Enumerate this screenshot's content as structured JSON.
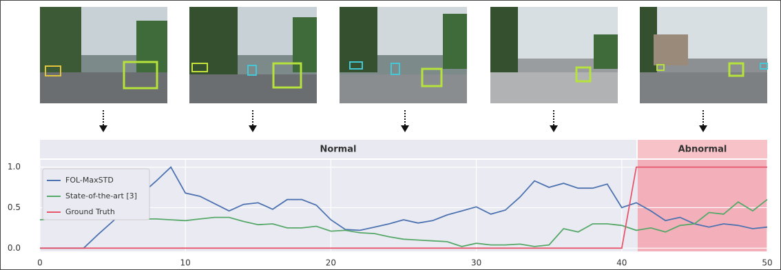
{
  "chart_data": {
    "type": "line",
    "x": [
      0,
      1,
      2,
      3,
      4,
      5,
      6,
      7,
      8,
      9,
      10,
      11,
      12,
      13,
      14,
      15,
      16,
      17,
      18,
      19,
      20,
      21,
      22,
      23,
      24,
      25,
      26,
      27,
      28,
      29,
      30,
      31,
      32,
      33,
      34,
      35,
      36,
      37,
      38,
      39,
      40,
      41,
      42,
      43,
      44,
      45,
      46,
      47,
      48,
      49,
      50
    ],
    "series": [
      {
        "name": "FOL-MaxSTD",
        "color": "#4c72b0",
        "values": [
          0,
          0,
          0,
          0,
          0.17,
          0.33,
          0.5,
          0.67,
          0.83,
          1.0,
          0.68,
          0.64,
          0.55,
          0.46,
          0.54,
          0.56,
          0.48,
          0.6,
          0.6,
          0.53,
          0.35,
          0.23,
          0.22,
          0.26,
          0.3,
          0.35,
          0.31,
          0.34,
          0.41,
          0.46,
          0.51,
          0.42,
          0.47,
          0.63,
          0.83,
          0.75,
          0.8,
          0.74,
          0.74,
          0.79,
          0.5,
          0.56,
          0.46,
          0.34,
          0.38,
          0.3,
          0.26,
          0.3,
          0.28,
          0.24,
          0.26
        ]
      },
      {
        "name": "State-of-the-art [3]",
        "color": "#55a868",
        "values": [
          0.35,
          0.36,
          0.37,
          0.38,
          0.4,
          0.4,
          0.38,
          0.36,
          0.36,
          0.35,
          0.34,
          0.36,
          0.38,
          0.38,
          0.33,
          0.29,
          0.3,
          0.25,
          0.25,
          0.27,
          0.21,
          0.22,
          0.19,
          0.18,
          0.14,
          0.11,
          0.1,
          0.09,
          0.08,
          0.02,
          0.06,
          0.04,
          0.04,
          0.05,
          0.02,
          0.04,
          0.24,
          0.2,
          0.3,
          0.3,
          0.28,
          0.22,
          0.25,
          0.2,
          0.28,
          0.3,
          0.44,
          0.42,
          0.57,
          0.46,
          0.6
        ]
      },
      {
        "name": "Ground Truth",
        "color": "#e8546a",
        "values": [
          0,
          0,
          0,
          0,
          0,
          0,
          0,
          0,
          0,
          0,
          0,
          0,
          0,
          0,
          0,
          0,
          0,
          0,
          0,
          0,
          0,
          0,
          0,
          0,
          0,
          0,
          0,
          0,
          0,
          0,
          0,
          0,
          0,
          0,
          0,
          0,
          0,
          0,
          0,
          0,
          0,
          1,
          1,
          1,
          1,
          1,
          1,
          1,
          1,
          1,
          1
        ]
      }
    ],
    "phases": [
      {
        "label": "Normal",
        "start": 0,
        "end": 41
      },
      {
        "label": "Abnormal",
        "start": 41,
        "end": 50
      }
    ],
    "xlim": [
      0,
      50
    ],
    "xticks": [
      0,
      10,
      20,
      30,
      40,
      50
    ],
    "ylim": [
      -0.04,
      1.09
    ],
    "yticks": [
      {
        "value": 0,
        "label": "0.0"
      },
      {
        "value": 0.5,
        "label": "0.5"
      },
      {
        "value": 1,
        "label": "1.0"
      }
    ],
    "grid": true,
    "legend": "upper-left"
  }
}
